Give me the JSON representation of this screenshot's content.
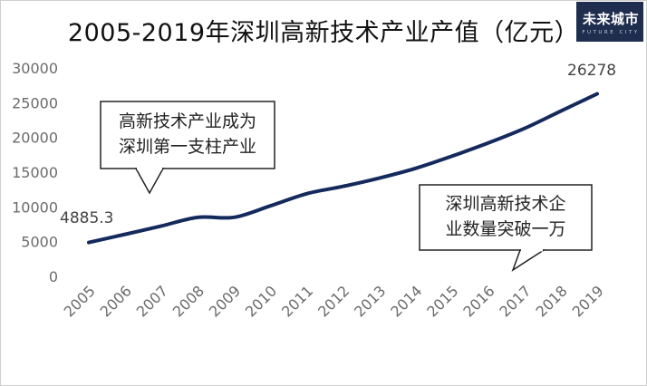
{
  "title": "2005-2019年深圳高新技术产业产值（亿元）",
  "logo": {
    "text": "未来城市",
    "subtext": "FUTURE CITY"
  },
  "chart_data": {
    "type": "line",
    "title": "2005-2019年深圳高新技术产业产值（亿元）",
    "categories": [
      "2005",
      "2006",
      "2007",
      "2008",
      "2009",
      "2010",
      "2011",
      "2012",
      "2013",
      "2014",
      "2015",
      "2016",
      "2017",
      "2018",
      "2019"
    ],
    "series": [
      {
        "values": [
          4885.3,
          6050,
          7250,
          8500,
          8500,
          10150,
          11900,
          12950,
          14150,
          15550,
          17300,
          19200,
          21300,
          23800,
          26278
        ]
      }
    ],
    "data_labels": {
      "first": "4885.3",
      "last": "26278"
    },
    "yticks": [
      "0",
      "5000",
      "10000",
      "15000",
      "20000",
      "25000",
      "30000"
    ],
    "ylim": [
      0,
      30000
    ],
    "xlabel": "",
    "ylabel": "",
    "grid": false,
    "line_color": "#142a5c",
    "annotations": [
      {
        "lines": [
          "高新技术产业成为",
          "深圳第一支柱产业"
        ]
      },
      {
        "lines": [
          "深圳高新技术企",
          "业数量突破一万"
        ]
      }
    ]
  }
}
